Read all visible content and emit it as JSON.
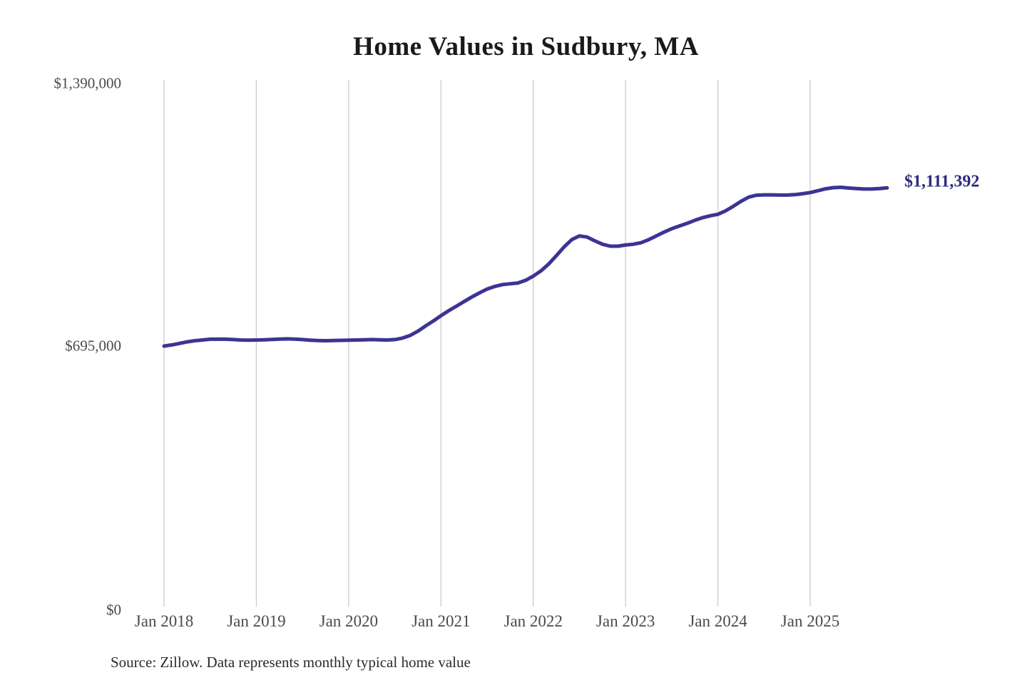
{
  "chart_data": {
    "type": "line",
    "title": "Home Values in Sudbury, MA",
    "source_note": "Source: Zillow. Data represents monthly typical home value",
    "series_name": "Monthly typical home value",
    "end_label": "$1,111,392",
    "latest_value": 1111392,
    "x_start": "Jan 2018",
    "x_end": "Nov 2025",
    "frequency": "monthly",
    "x_ticks": [
      "Jan 2018",
      "Jan 2019",
      "Jan 2020",
      "Jan 2021",
      "Jan 2022",
      "Jan 2023",
      "Jan 2024",
      "Jan 2025"
    ],
    "y_ticks": [
      "$1,390,000",
      "$695,000",
      "$0"
    ],
    "y_tick_values": [
      1390000,
      695000,
      0
    ],
    "ylim": [
      0,
      1390000
    ],
    "grid": "vertical-only",
    "legend": "none",
    "values": [
      695000,
      698000,
      702000,
      706000,
      709000,
      711000,
      713000,
      713500,
      713000,
      712000,
      711000,
      710500,
      711000,
      711500,
      712500,
      713500,
      714000,
      713500,
      712000,
      710500,
      709500,
      709000,
      709500,
      710000,
      710500,
      711000,
      711500,
      712000,
      711500,
      711000,
      712000,
      716000,
      723000,
      734000,
      748000,
      761000,
      775000,
      788000,
      800000,
      812000,
      824000,
      835000,
      845000,
      852000,
      857000,
      859000,
      861000,
      868000,
      879000,
      893000,
      911000,
      933000,
      956000,
      975000,
      985000,
      982000,
      972000,
      963000,
      958000,
      958000,
      961000,
      963000,
      967000,
      975000,
      985000,
      995000,
      1004000,
      1011000,
      1018000,
      1026000,
      1033000,
      1038000,
      1042000,
      1051000,
      1063000,
      1076000,
      1087000,
      1092000,
      1093000,
      1093000,
      1092500,
      1092500,
      1093500,
      1096000,
      1099000,
      1104000,
      1109000,
      1112000,
      1113000,
      1111000,
      1109500,
      1108500,
      1108500,
      1109500,
      1111392
    ],
    "line_color": "#3c3493",
    "end_label_color": "#2e2b7b",
    "grid_color": "#cccccc",
    "axis_text_color": "#4a4a4a",
    "title_color": "#1a1a1a"
  }
}
